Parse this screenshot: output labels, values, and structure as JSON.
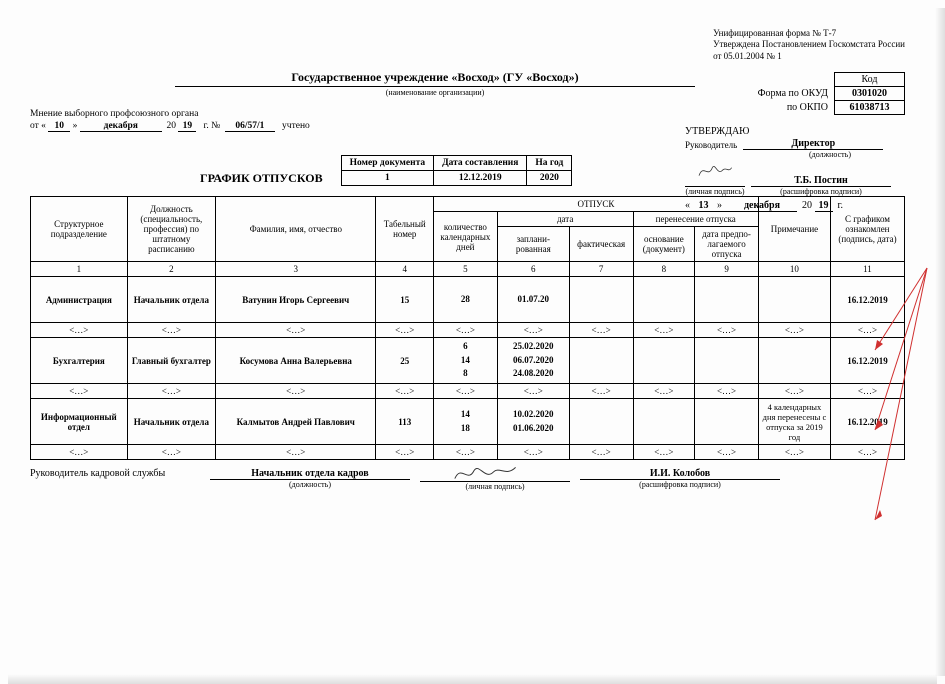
{
  "form_note": {
    "l1": "Унифицированная форма № Т-7",
    "l2": "Утверждена Постановлением Госкомстата России",
    "l3": "от 05.01.2004 № 1"
  },
  "codes": {
    "head": "Код",
    "okud_label": "Форма по ОКУД",
    "okud": "0301020",
    "okpo_label": "по ОКПО",
    "okpo": "61038713"
  },
  "org": {
    "name": "Государственное  учреждение «Восход» (ГУ «Восход»)",
    "caption": "(наименование организации)"
  },
  "opinion": {
    "title": "Мнение выборного профсоюзного органа",
    "ot": "от «",
    "day": "10",
    "close": "»",
    "month": "декабря",
    "y_prefix": "20",
    "year2": "19",
    "g": "г.   №",
    "num": "06/57/1",
    "tail": "учтено"
  },
  "approve": {
    "head": "УТВЕРЖДАЮ",
    "lead": "Руководитель",
    "role": "Директор",
    "role_cap": "(должность)",
    "sig_cap": "(личная подпись)",
    "name": "Т.Б. Постин",
    "name_cap": "(расшифровка подписи)",
    "q1": "«",
    "day": "13",
    "q2": "»",
    "month": "декабря",
    "y_prefix": "20",
    "year2": "19",
    "g": "г."
  },
  "doc": {
    "title": "ГРАФИК ОТПУСКОВ",
    "h1": "Номер документа",
    "h2": "Дата составления",
    "h3": "На год",
    "num": "1",
    "date": "12.12.2019",
    "year": "2020"
  },
  "headers": {
    "c1": "Структурное подразделение",
    "c2": "Должность (специальность, профессия) по штатному расписанию",
    "c3": "Фамилия, имя, отчество",
    "c4": "Табельный номер",
    "vac": "ОТПУСК",
    "c5": "количество календарных дней",
    "date": "дата",
    "c6": "заплани-\nрованная",
    "c7": "фактическая",
    "transfer": "перенесение отпуска",
    "c8": "основание (документ)",
    "c9": "дата предпо-\nлагаемого отпуска",
    "c10": "Примечание",
    "c11": "С графиком ознакомлен (подпись, дата)"
  },
  "colnums": [
    "1",
    "2",
    "3",
    "4",
    "5",
    "6",
    "7",
    "8",
    "9",
    "10",
    "11"
  ],
  "ellipsis": "<…>",
  "rows": [
    {
      "dept": "Администрация",
      "position": "Начальник отдела",
      "fio": "Ватунин Игорь Сергеевич",
      "tab": "15",
      "days": [
        "28"
      ],
      "planned": [
        "01.07.20"
      ],
      "note": "",
      "ack": "16.12.2019"
    },
    {
      "dept": "Бухгалтерия",
      "position": "Главный бухгалтер",
      "fio": "Косумова Анна Валерьевна",
      "tab": "25",
      "days": [
        "6",
        "14",
        "8"
      ],
      "planned": [
        "25.02.2020",
        "06.07.2020",
        "24.08.2020"
      ],
      "note": "",
      "ack": "16.12.2019"
    },
    {
      "dept": "Информационный отдел",
      "position": "Начальник отдела",
      "fio": "Калмытов Андрей Павлович",
      "tab": "113",
      "days": [
        "14",
        "18"
      ],
      "planned": [
        "10.02.2020",
        "01.06.2020"
      ],
      "note": "4 календарных дня перенесены с отпуска за 2019 год",
      "ack": "16.12.2019"
    }
  ],
  "footer": {
    "lead": "Руководитель кадровой службы",
    "role": "Начальник отдела кадров",
    "role_cap": "(должность)",
    "sig_cap": "(личная подпись)",
    "name": "И.И. Колобов",
    "name_cap": "(расшифровка подписи)"
  },
  "style": {
    "accent": "#d03030"
  }
}
